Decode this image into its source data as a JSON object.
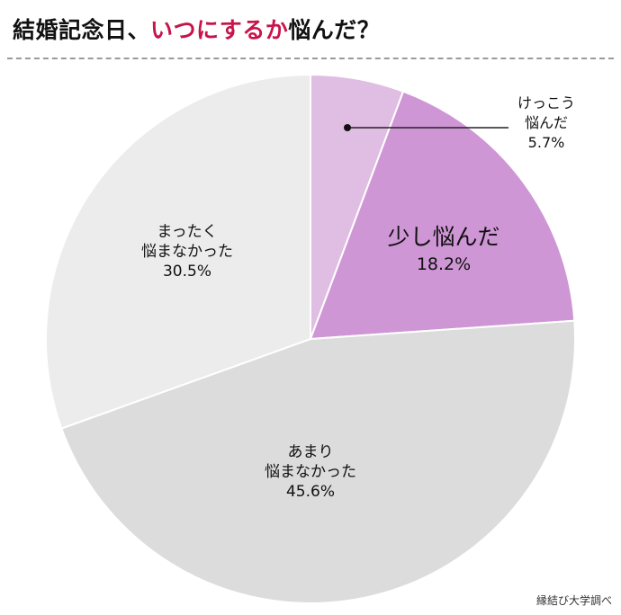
{
  "title": {
    "prefix": "結婚記念日、",
    "highlight": "いつにするか",
    "suffix": "悩んだ？"
  },
  "source": "縁結び大学調べ",
  "chart_data": {
    "type": "pie",
    "start": "12 o'clock",
    "direction": "clockwise",
    "slices": [
      {
        "label_lines": [
          "けっこう",
          "悩んだ"
        ],
        "value": 5.7,
        "value_text": "5.7%",
        "color": "#e0bde3"
      },
      {
        "label_lines": [
          "少し悩んだ"
        ],
        "value": 18.2,
        "value_text": "18.2%",
        "color": "#cf96d6"
      },
      {
        "label_lines": [
          "あまり",
          "悩まなかった"
        ],
        "value": 45.6,
        "value_text": "45.6%",
        "color": "#dcdcdc"
      },
      {
        "label_lines": [
          "まったく",
          "悩まなかった"
        ],
        "value": 30.5,
        "value_text": "30.5%",
        "color": "#ececec"
      }
    ]
  }
}
